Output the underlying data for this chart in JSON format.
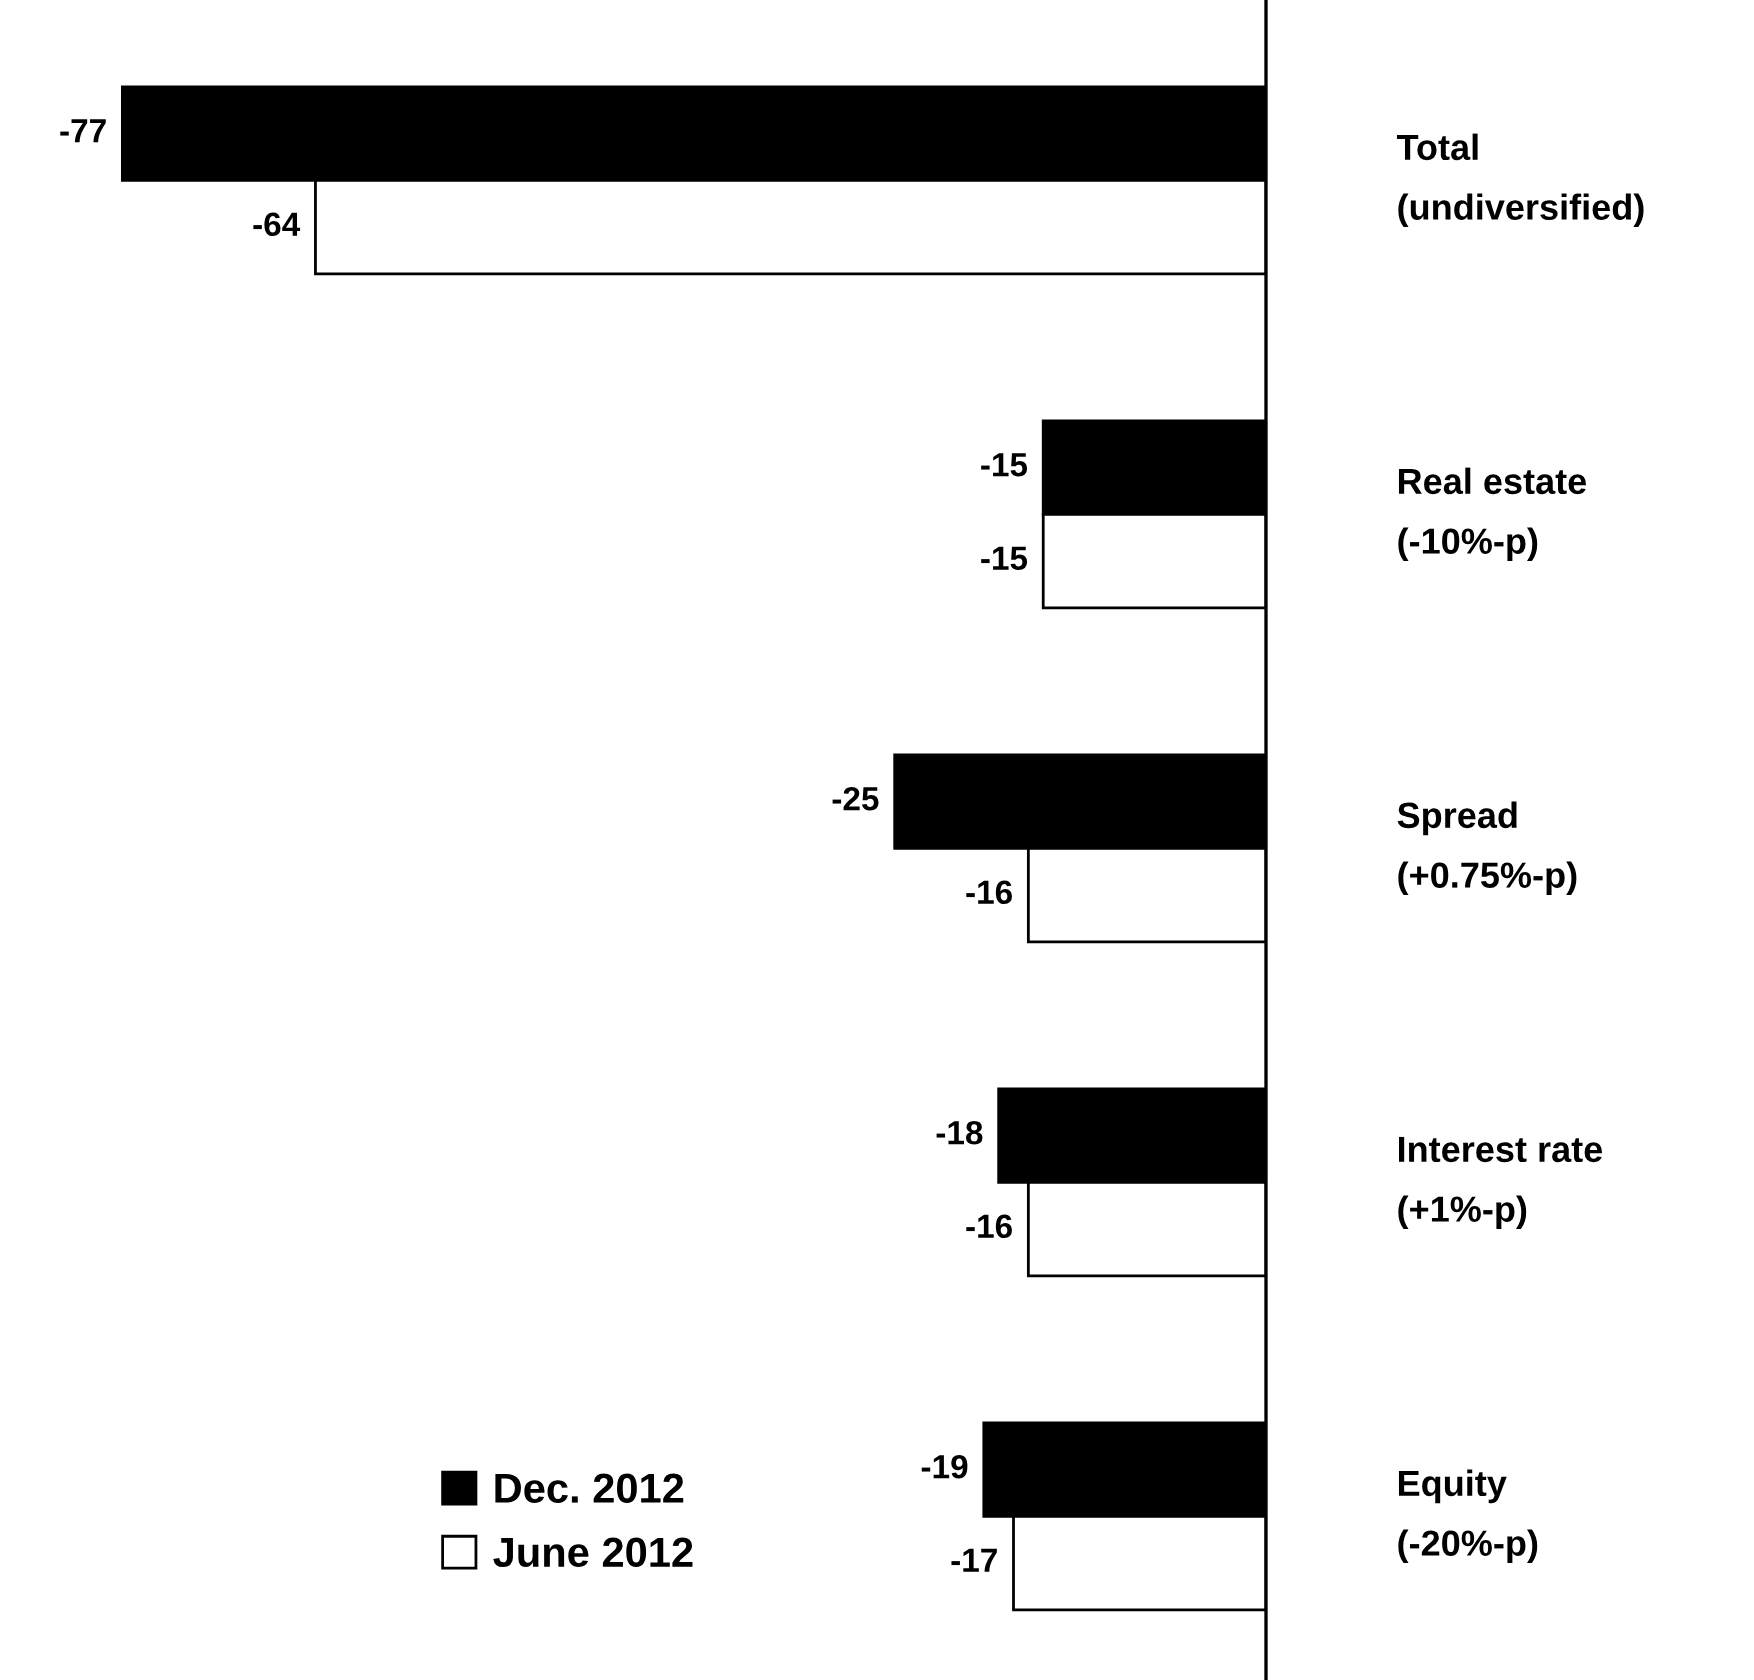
{
  "chart_data": {
    "type": "bar",
    "orientation": "horizontal",
    "categories": [
      "Total\n(undiversified)",
      "Real estate\n(-10%-p)",
      "Spread\n(+0.75%-p)",
      "Interest rate\n(+1%-p)",
      "Equity\n(-20%-p)"
    ],
    "series": [
      {
        "name": "Dec. 2012",
        "color": "#000000",
        "values": [
          -77,
          -15,
          -25,
          -18,
          -19
        ]
      },
      {
        "name": "June 2012",
        "color": "#ffffff",
        "values": [
          -64,
          -15,
          -16,
          -16,
          -17
        ]
      }
    ],
    "data_labels": true,
    "legend": "bottom"
  }
}
